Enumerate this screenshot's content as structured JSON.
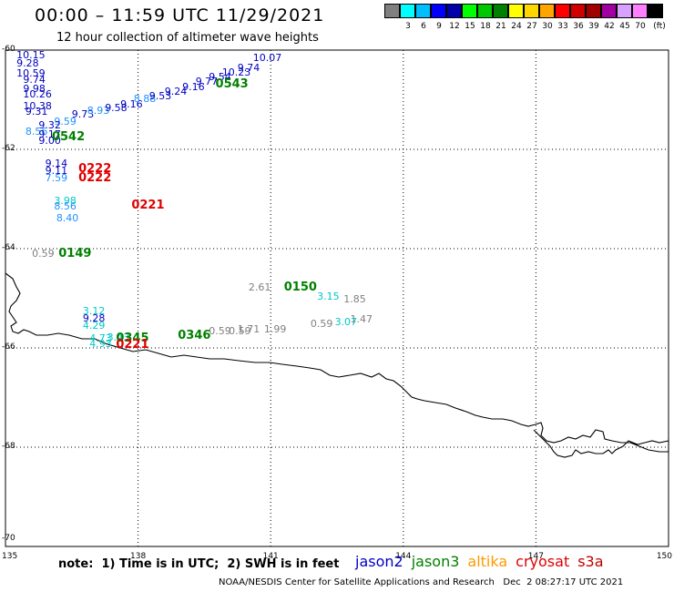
{
  "title": "00:00 – 11:59 UTC 11/29/2021",
  "subtitle": "12 hour collection of altimeter wave heights",
  "scale": {
    "unit": "(ft)",
    "bins": [
      {
        "label": "",
        "color": "#808080"
      },
      {
        "label": "3",
        "color": "#00ffff"
      },
      {
        "label": "6",
        "color": "#00bfff"
      },
      {
        "label": "9",
        "color": "#0000ff"
      },
      {
        "label": "12",
        "color": "#0000a8"
      },
      {
        "label": "15",
        "color": "#00ff00"
      },
      {
        "label": "18",
        "color": "#00c800"
      },
      {
        "label": "21",
        "color": "#008000"
      },
      {
        "label": "24",
        "color": "#ffff00"
      },
      {
        "label": "27",
        "color": "#ffd700"
      },
      {
        "label": "30",
        "color": "#ffa500"
      },
      {
        "label": "33",
        "color": "#ff0000"
      },
      {
        "label": "36",
        "color": "#d00000"
      },
      {
        "label": "39",
        "color": "#a00000"
      },
      {
        "label": "42",
        "color": "#a000a0"
      },
      {
        "label": "45",
        "color": "#d8a0ff"
      },
      {
        "label": "70",
        "color": "#ff80ff"
      },
      {
        "label": "",
        "color": "#000000"
      }
    ]
  },
  "axes": {
    "lat_labels": [
      "-60",
      "-62",
      "-64",
      "-66",
      "-68",
      "-70"
    ],
    "lon_labels": [
      "135",
      "138",
      "141",
      "144",
      "147",
      "150"
    ]
  },
  "observations": [
    {
      "v": "10.15",
      "c": "#0000c0",
      "lon": 135.25,
      "lat": -60.1
    },
    {
      "v": "9.28",
      "c": "#0000c0",
      "lon": 135.25,
      "lat": -60.25
    },
    {
      "v": "10.59",
      "c": "#0000c0",
      "lon": 135.25,
      "lat": -60.45
    },
    {
      "v": "9.74",
      "c": "#0000c0",
      "lon": 135.4,
      "lat": -60.58
    },
    {
      "v": "9.98",
      "c": "#0000c0",
      "lon": 135.4,
      "lat": -60.77
    },
    {
      "v": "10.26",
      "c": "#0000c0",
      "lon": 135.4,
      "lat": -60.88
    },
    {
      "v": "10.38",
      "c": "#0000c0",
      "lon": 135.4,
      "lat": -61.12
    },
    {
      "v": "9.31",
      "c": "#0000c0",
      "lon": 135.45,
      "lat": -61.23
    },
    {
      "v": "9.73",
      "c": "#0000c0",
      "lon": 136.5,
      "lat": -61.29
    },
    {
      "v": "8.93",
      "c": "#1e90ff",
      "lon": 136.85,
      "lat": -61.22
    },
    {
      "v": "9.58",
      "c": "#0000c0",
      "lon": 137.25,
      "lat": -61.15
    },
    {
      "v": "9.16",
      "c": "#0000c0",
      "lon": 137.6,
      "lat": -61.08
    },
    {
      "v": "8.88",
      "c": "#1e90ff",
      "lon": 137.9,
      "lat": -60.98
    },
    {
      "v": "9.53",
      "c": "#0000c0",
      "lon": 138.25,
      "lat": -60.91
    },
    {
      "v": "9.24",
      "c": "#0000c0",
      "lon": 138.6,
      "lat": -60.83
    },
    {
      "v": "9.16",
      "c": "#0000c0",
      "lon": 139.0,
      "lat": -60.74
    },
    {
      "v": "9.77",
      "c": "#0000c0",
      "lon": 139.3,
      "lat": -60.63
    },
    {
      "v": "9.54",
      "c": "#0000c0",
      "lon": 139.6,
      "lat": -60.53
    },
    {
      "v": "10.23",
      "c": "#0000c0",
      "lon": 139.9,
      "lat": -60.44
    },
    {
      "v": "9.74",
      "c": "#0000c0",
      "lon": 140.25,
      "lat": -60.34
    },
    {
      "v": "10.07",
      "c": "#0000c0",
      "lon": 140.6,
      "lat": -60.15
    },
    {
      "v": "9.59",
      "c": "#1e90ff",
      "lon": 136.1,
      "lat": -61.43
    },
    {
      "v": "9.32",
      "c": "#0000c0",
      "lon": 135.75,
      "lat": -61.5
    },
    {
      "v": "8.56",
      "c": "#1e90ff",
      "lon": 135.45,
      "lat": -61.63
    },
    {
      "v": "9.17",
      "c": "#0000c0",
      "lon": 135.75,
      "lat": -61.68
    },
    {
      "v": "9.00",
      "c": "#0000c0",
      "lon": 135.75,
      "lat": -61.82
    },
    {
      "v": "9.14",
      "c": "#0000c0",
      "lon": 135.9,
      "lat": -62.27
    },
    {
      "v": "9.11",
      "c": "#0000c0",
      "lon": 135.9,
      "lat": -62.42
    },
    {
      "v": "7.59",
      "c": "#1e90ff",
      "lon": 135.9,
      "lat": -62.57
    },
    {
      "v": "3.98",
      "c": "#00c8c8",
      "lon": 136.1,
      "lat": -63.02
    },
    {
      "v": "8.56",
      "c": "#1e90ff",
      "lon": 136.1,
      "lat": -63.14
    },
    {
      "v": "8.40",
      "c": "#1e90ff",
      "lon": 136.15,
      "lat": -63.38
    },
    {
      "v": "0.59",
      "c": "#808080",
      "lon": 135.6,
      "lat": -64.1
    },
    {
      "v": "2.61",
      "c": "#808080",
      "lon": 140.5,
      "lat": -64.77
    },
    {
      "v": "3.15",
      "c": "#00c8c8",
      "lon": 142.05,
      "lat": -64.95
    },
    {
      "v": "1.85",
      "c": "#808080",
      "lon": 142.65,
      "lat": -65.0
    },
    {
      "v": "1.47",
      "c": "#808080",
      "lon": 142.8,
      "lat": -65.42
    },
    {
      "v": "3.07",
      "c": "#00c8c8",
      "lon": 142.45,
      "lat": -65.47
    },
    {
      "v": "0.59",
      "c": "#808080",
      "lon": 141.9,
      "lat": -65.51
    },
    {
      "v": "1.99",
      "c": "#808080",
      "lon": 140.85,
      "lat": -65.61
    },
    {
      "v": "1.71",
      "c": "#808080",
      "lon": 140.25,
      "lat": -65.62
    },
    {
      "v": "0.59",
      "c": "#808080",
      "lon": 140.05,
      "lat": -65.66
    },
    {
      "v": "0.59",
      "c": "#808080",
      "lon": 139.6,
      "lat": -65.66
    },
    {
      "v": "3.12",
      "c": "#00c8c8",
      "lon": 136.75,
      "lat": -65.25
    },
    {
      "v": "9.28",
      "c": "#0000c0",
      "lon": 136.75,
      "lat": -65.4
    },
    {
      "v": "4.29",
      "c": "#00c8c8",
      "lon": 136.75,
      "lat": -65.55
    },
    {
      "v": "4.73",
      "c": "#00c8c8",
      "lon": 136.9,
      "lat": -65.8
    },
    {
      "v": "3.43",
      "c": "#00c8c8",
      "lon": 137.3,
      "lat": -65.78
    },
    {
      "v": "4.93",
      "c": "#00c8c8",
      "lon": 136.9,
      "lat": -65.91
    }
  ],
  "times": [
    {
      "t": "0543",
      "c": "#008000",
      "lon": 139.75,
      "lat": -60.68
    },
    {
      "t": "0542",
      "c": "#008000",
      "lon": 136.05,
      "lat": -61.75
    },
    {
      "t": "0222",
      "c": "#e00000",
      "lon": 136.65,
      "lat": -62.38
    },
    {
      "t": "0222",
      "c": "#e00000",
      "lon": 136.65,
      "lat": -62.56
    },
    {
      "t": "0221",
      "c": "#e00000",
      "lon": 137.85,
      "lat": -63.12
    },
    {
      "t": "0149",
      "c": "#008000",
      "lon": 136.2,
      "lat": -64.1
    },
    {
      "t": "0150",
      "c": "#008000",
      "lon": 141.3,
      "lat": -64.77
    },
    {
      "t": "0346",
      "c": "#008000",
      "lon": 138.9,
      "lat": -65.74
    },
    {
      "t": "0345",
      "c": "#008000",
      "lon": 137.5,
      "lat": -65.8
    },
    {
      "t": "0221",
      "c": "#e00000",
      "lon": 137.5,
      "lat": -65.93
    }
  ],
  "note": "note:  1) Time is in UTC;  2) SWH is in feet",
  "legend": [
    {
      "name": "jason2",
      "color": "#0000c8"
    },
    {
      "name": "jason3",
      "color": "#008000"
    },
    {
      "name": "altika",
      "color": "#ff9900"
    },
    {
      "name": "cryosat",
      "color": "#e00000"
    },
    {
      "name": "s3a",
      "color": "#c00000"
    }
  ],
  "footer": "NOAA/NESDIS Center for Satellite Applications and Research   Dec  2 08:27:17 UTC 2021"
}
